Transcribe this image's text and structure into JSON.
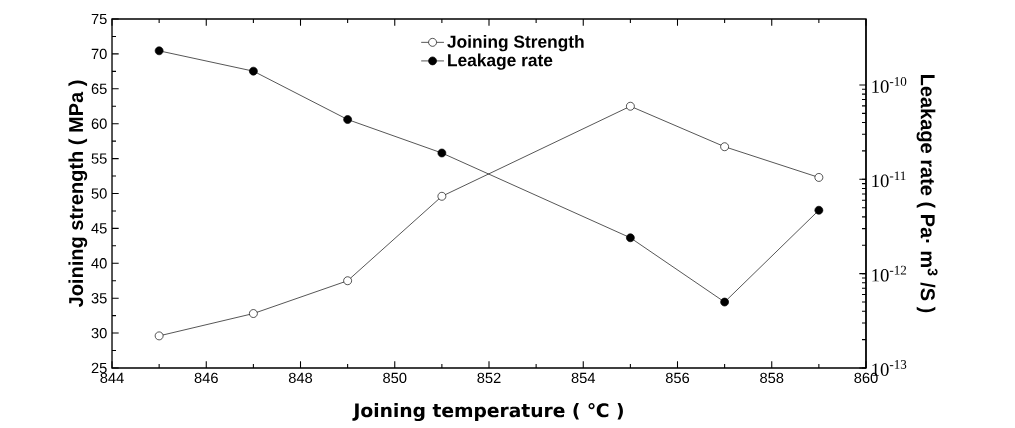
{
  "chart_data": {
    "type": "line",
    "xlabel": "Joining temperature ( ℃ )",
    "ylabel": "Joining strength ( MPa )",
    "y2label": "Leakage rate ( Pa· m$^{3}$ /S )",
    "x": [
      845,
      847,
      849,
      851,
      855,
      857,
      859
    ],
    "xlim": [
      844,
      860
    ],
    "xticks": [
      844,
      846,
      848,
      850,
      852,
      854,
      856,
      858,
      860
    ],
    "ylim": [
      25,
      75
    ],
    "yticks": [
      25,
      30,
      35,
      40,
      45,
      50,
      55,
      60,
      65,
      70,
      75
    ],
    "y2lim": [
      1e-13,
      5e-10
    ],
    "y2ticks": [
      {
        "value": 1e-13,
        "label": "10$^{-13}$"
      },
      {
        "value": 1e-12,
        "label": "10$^{-12}$"
      },
      {
        "value": 1e-11,
        "label": "10$^{-11}$"
      },
      {
        "value": 1e-10,
        "label": "10$^{-10}$"
      }
    ],
    "log": "y2",
    "marker": "circle",
    "legend": "top",
    "grid": false,
    "series": [
      {
        "name": "Joining Strength",
        "color": "#000000",
        "values": [
          29.6,
          32.8,
          37.5,
          49.6,
          62.5,
          56.7,
          52.3
        ]
      },
      {
        "name": "Leakage rate",
        "color": "#000000",
        "axis": "y2",
        "values": [
          2.3e-10,
          1.4e-10,
          4.3e-11,
          1.9e-11,
          2.4e-12,
          5e-13,
          4.7e-12
        ]
      }
    ]
  }
}
